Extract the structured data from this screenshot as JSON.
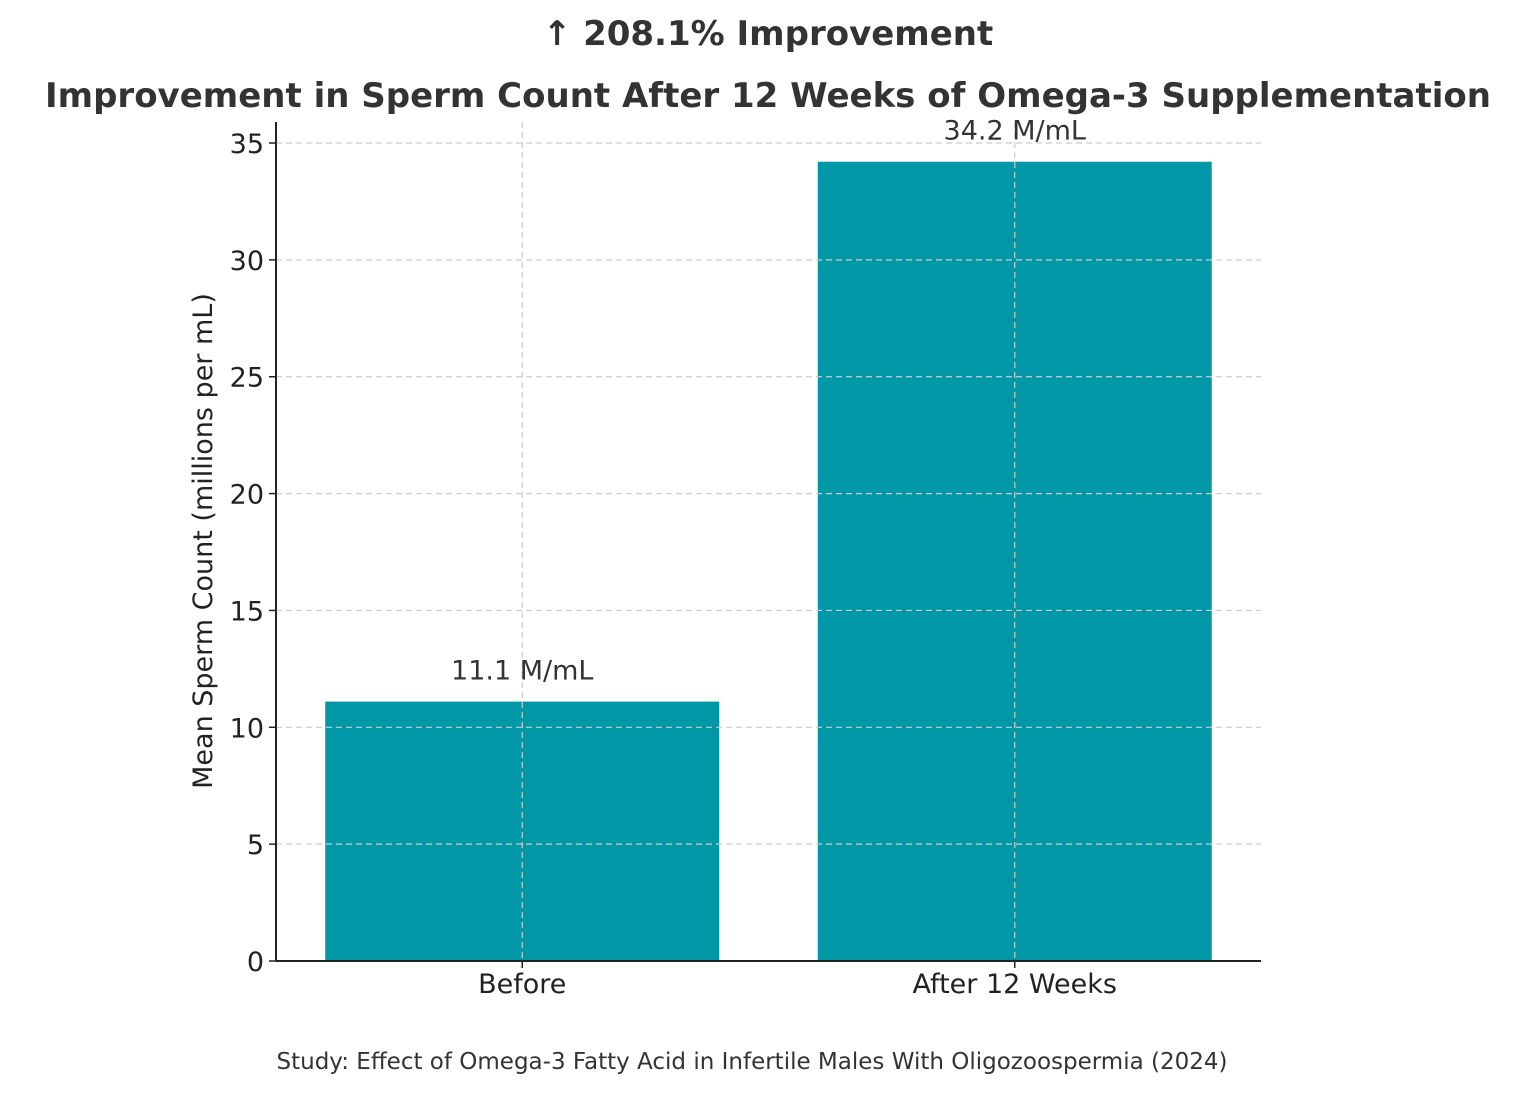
{
  "chart_data": {
    "type": "bar",
    "suptitle": "↑ 208.1% Improvement",
    "title": "Improvement in Sperm Count After 12 Weeks of Omega-3 Supplementation",
    "xlabel": "",
    "ylabel": "Mean Sperm Count (millions per mL)",
    "categories": [
      "Before",
      "After 12 Weeks"
    ],
    "values": [
      11.1,
      34.2
    ],
    "data_labels": [
      "11.1 M/mL",
      "34.2 M/mL"
    ],
    "ylim": [
      0,
      35.9
    ],
    "yticks": [
      0,
      5,
      10,
      15,
      20,
      25,
      30,
      35
    ],
    "grid": true,
    "bar_color": "#0097A7",
    "footnote": "Study: Effect of Omega-3 Fatty Acid in Infertile Males With Oligozoospermia (2024)"
  }
}
